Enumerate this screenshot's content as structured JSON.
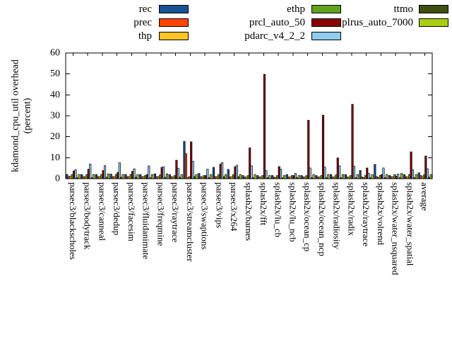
{
  "chart_data": {
    "type": "bar",
    "title": "",
    "ylabel": "kdamond_cpu_util overhead (percent)",
    "ylabel_lines": [
      "kdamond_cpu_util overhead",
      "(percent)"
    ],
    "xlabel": "",
    "ylim": [
      0,
      60
    ],
    "yticks": [
      0,
      10,
      20,
      30,
      40,
      50,
      60
    ],
    "grid": false,
    "legend_position": "top-outside, 3 columns",
    "categories": [
      "parsec3/blackscholes",
      "parsec3/bodytrack",
      "parsec3/canneal",
      "parsec3/dedup",
      "parsec3/facesim",
      "parsec3/fluidanimate",
      "parsec3/freqmine",
      "parsec3/raytrace",
      "parsec3/streamcluster",
      "parsec3/swaptions",
      "parsec3/vips",
      "parsec3/x264",
      "splash2x/barnes",
      "splash2x/fft",
      "splash2x/lu_cb",
      "splash2x/lu_ncb",
      "splash2x/ocean_cp",
      "splash2x/ocean_ncp",
      "splash2x/radiosity",
      "splash2x/radix",
      "splash2x/raytrace",
      "splash2x/volrend",
      "splash2x/water_nsquared",
      "splash2x/water_spatial",
      "average"
    ],
    "series": [
      {
        "name": "rec",
        "color": "#1A5293",
        "values": [
          2,
          2,
          2,
          2.2,
          2,
          2,
          2.3,
          2,
          17.8,
          2.5,
          5.4,
          4.4,
          1.5,
          1.5,
          1.5,
          2,
          1.5,
          1.5,
          2,
          2,
          3.9,
          6.8,
          1.5,
          2,
          2.8
        ]
      },
      {
        "name": "prec",
        "color": "#FF4500",
        "values": [
          1,
          1,
          1,
          1,
          1,
          1,
          1,
          1,
          11.9,
          1,
          1,
          0.8,
          0.8,
          0.8,
          0.7,
          0.8,
          0.8,
          0.8,
          0.8,
          0.8,
          0.8,
          1,
          1,
          1,
          1.5
        ]
      },
      {
        "name": "thp",
        "color": "#FFC425",
        "values": [
          1.2,
          1,
          1,
          1,
          1,
          1,
          1,
          0.8,
          0.5,
          0.8,
          1,
          1,
          0.8,
          0.8,
          0.7,
          0.8,
          0.8,
          0.8,
          0.8,
          0.8,
          0.5,
          0.5,
          0.8,
          0.8,
          1
        ]
      },
      {
        "name": "ethp",
        "color": "#62A31C",
        "values": [
          2,
          2,
          2,
          2,
          2,
          1.5,
          1.8,
          1.5,
          1,
          1.5,
          2,
          2,
          1.5,
          1.5,
          1.5,
          1.5,
          1.5,
          1.5,
          1.8,
          1.5,
          1.5,
          1.5,
          2,
          2,
          1.8
        ]
      },
      {
        "name": "prcl_auto_50",
        "color": "#8B0000",
        "values": [
          3.7,
          4.5,
          3.9,
          3,
          3.5,
          2,
          5.4,
          8.8,
          17.6,
          1.5,
          7,
          5.7,
          14.7,
          49.8,
          5.8,
          1.5,
          27.9,
          30.3,
          9.9,
          35.5,
          5.1,
          2,
          1.2,
          12.8,
          10.8
        ]
      },
      {
        "name": "pdarc_v4_2_2",
        "color": "#8FCDF0",
        "values": [
          4.3,
          7,
          6.2,
          7.6,
          4.7,
          6.1,
          5.7,
          5,
          8.3,
          4.5,
          7.7,
          6.4,
          6.1,
          3.8,
          4.5,
          2.5,
          5.1,
          5.5,
          6.1,
          6,
          2.5,
          5.1,
          2.2,
          4.2,
          4.7
        ]
      },
      {
        "name": "ttmo",
        "color": "#404F10",
        "values": [
          0.5,
          0.5,
          0.7,
          0.7,
          0.7,
          0.5,
          0.7,
          0.7,
          1,
          0.5,
          1,
          1,
          0.5,
          0.5,
          0.5,
          0.5,
          0.5,
          0.5,
          0.5,
          0.5,
          0.5,
          0.5,
          0.5,
          0.5,
          0.7
        ]
      },
      {
        "name": "plrus_auto_7000",
        "color": "#A9CE12",
        "values": [
          2,
          2,
          2.3,
          2,
          2,
          2,
          2.3,
          2,
          2,
          2,
          2,
          2,
          2,
          1.5,
          1.5,
          1.5,
          2,
          2,
          2,
          2,
          2,
          2,
          2.5,
          2,
          2
        ]
      }
    ]
  }
}
